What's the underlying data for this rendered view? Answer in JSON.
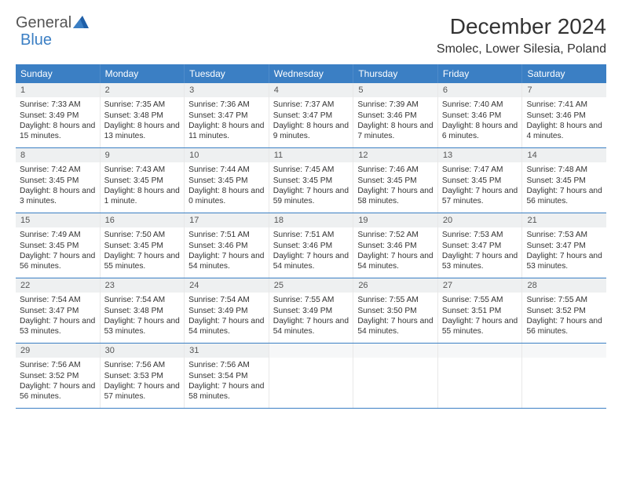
{
  "logo": {
    "part1": "General",
    "part2": "Blue"
  },
  "title": "December 2024",
  "location": "Smolec, Lower Silesia, Poland",
  "colors": {
    "header_bg": "#3b7fc4",
    "header_text": "#ffffff",
    "daynum_bg": "#eef0f1",
    "border": "#3b7fc4",
    "text": "#333333"
  },
  "weekdays": [
    "Sunday",
    "Monday",
    "Tuesday",
    "Wednesday",
    "Thursday",
    "Friday",
    "Saturday"
  ],
  "weeks": [
    [
      {
        "n": "1",
        "sr": "Sunrise: 7:33 AM",
        "ss": "Sunset: 3:49 PM",
        "dl": "Daylight: 8 hours and 15 minutes."
      },
      {
        "n": "2",
        "sr": "Sunrise: 7:35 AM",
        "ss": "Sunset: 3:48 PM",
        "dl": "Daylight: 8 hours and 13 minutes."
      },
      {
        "n": "3",
        "sr": "Sunrise: 7:36 AM",
        "ss": "Sunset: 3:47 PM",
        "dl": "Daylight: 8 hours and 11 minutes."
      },
      {
        "n": "4",
        "sr": "Sunrise: 7:37 AM",
        "ss": "Sunset: 3:47 PM",
        "dl": "Daylight: 8 hours and 9 minutes."
      },
      {
        "n": "5",
        "sr": "Sunrise: 7:39 AM",
        "ss": "Sunset: 3:46 PM",
        "dl": "Daylight: 8 hours and 7 minutes."
      },
      {
        "n": "6",
        "sr": "Sunrise: 7:40 AM",
        "ss": "Sunset: 3:46 PM",
        "dl": "Daylight: 8 hours and 6 minutes."
      },
      {
        "n": "7",
        "sr": "Sunrise: 7:41 AM",
        "ss": "Sunset: 3:46 PM",
        "dl": "Daylight: 8 hours and 4 minutes."
      }
    ],
    [
      {
        "n": "8",
        "sr": "Sunrise: 7:42 AM",
        "ss": "Sunset: 3:45 PM",
        "dl": "Daylight: 8 hours and 3 minutes."
      },
      {
        "n": "9",
        "sr": "Sunrise: 7:43 AM",
        "ss": "Sunset: 3:45 PM",
        "dl": "Daylight: 8 hours and 1 minute."
      },
      {
        "n": "10",
        "sr": "Sunrise: 7:44 AM",
        "ss": "Sunset: 3:45 PM",
        "dl": "Daylight: 8 hours and 0 minutes."
      },
      {
        "n": "11",
        "sr": "Sunrise: 7:45 AM",
        "ss": "Sunset: 3:45 PM",
        "dl": "Daylight: 7 hours and 59 minutes."
      },
      {
        "n": "12",
        "sr": "Sunrise: 7:46 AM",
        "ss": "Sunset: 3:45 PM",
        "dl": "Daylight: 7 hours and 58 minutes."
      },
      {
        "n": "13",
        "sr": "Sunrise: 7:47 AM",
        "ss": "Sunset: 3:45 PM",
        "dl": "Daylight: 7 hours and 57 minutes."
      },
      {
        "n": "14",
        "sr": "Sunrise: 7:48 AM",
        "ss": "Sunset: 3:45 PM",
        "dl": "Daylight: 7 hours and 56 minutes."
      }
    ],
    [
      {
        "n": "15",
        "sr": "Sunrise: 7:49 AM",
        "ss": "Sunset: 3:45 PM",
        "dl": "Daylight: 7 hours and 56 minutes."
      },
      {
        "n": "16",
        "sr": "Sunrise: 7:50 AM",
        "ss": "Sunset: 3:45 PM",
        "dl": "Daylight: 7 hours and 55 minutes."
      },
      {
        "n": "17",
        "sr": "Sunrise: 7:51 AM",
        "ss": "Sunset: 3:46 PM",
        "dl": "Daylight: 7 hours and 54 minutes."
      },
      {
        "n": "18",
        "sr": "Sunrise: 7:51 AM",
        "ss": "Sunset: 3:46 PM",
        "dl": "Daylight: 7 hours and 54 minutes."
      },
      {
        "n": "19",
        "sr": "Sunrise: 7:52 AM",
        "ss": "Sunset: 3:46 PM",
        "dl": "Daylight: 7 hours and 54 minutes."
      },
      {
        "n": "20",
        "sr": "Sunrise: 7:53 AM",
        "ss": "Sunset: 3:47 PM",
        "dl": "Daylight: 7 hours and 53 minutes."
      },
      {
        "n": "21",
        "sr": "Sunrise: 7:53 AM",
        "ss": "Sunset: 3:47 PM",
        "dl": "Daylight: 7 hours and 53 minutes."
      }
    ],
    [
      {
        "n": "22",
        "sr": "Sunrise: 7:54 AM",
        "ss": "Sunset: 3:47 PM",
        "dl": "Daylight: 7 hours and 53 minutes."
      },
      {
        "n": "23",
        "sr": "Sunrise: 7:54 AM",
        "ss": "Sunset: 3:48 PM",
        "dl": "Daylight: 7 hours and 53 minutes."
      },
      {
        "n": "24",
        "sr": "Sunrise: 7:54 AM",
        "ss": "Sunset: 3:49 PM",
        "dl": "Daylight: 7 hours and 54 minutes."
      },
      {
        "n": "25",
        "sr": "Sunrise: 7:55 AM",
        "ss": "Sunset: 3:49 PM",
        "dl": "Daylight: 7 hours and 54 minutes."
      },
      {
        "n": "26",
        "sr": "Sunrise: 7:55 AM",
        "ss": "Sunset: 3:50 PM",
        "dl": "Daylight: 7 hours and 54 minutes."
      },
      {
        "n": "27",
        "sr": "Sunrise: 7:55 AM",
        "ss": "Sunset: 3:51 PM",
        "dl": "Daylight: 7 hours and 55 minutes."
      },
      {
        "n": "28",
        "sr": "Sunrise: 7:55 AM",
        "ss": "Sunset: 3:52 PM",
        "dl": "Daylight: 7 hours and 56 minutes."
      }
    ],
    [
      {
        "n": "29",
        "sr": "Sunrise: 7:56 AM",
        "ss": "Sunset: 3:52 PM",
        "dl": "Daylight: 7 hours and 56 minutes."
      },
      {
        "n": "30",
        "sr": "Sunrise: 7:56 AM",
        "ss": "Sunset: 3:53 PM",
        "dl": "Daylight: 7 hours and 57 minutes."
      },
      {
        "n": "31",
        "sr": "Sunrise: 7:56 AM",
        "ss": "Sunset: 3:54 PM",
        "dl": "Daylight: 7 hours and 58 minutes."
      },
      {
        "n": "",
        "sr": "",
        "ss": "",
        "dl": ""
      },
      {
        "n": "",
        "sr": "",
        "ss": "",
        "dl": ""
      },
      {
        "n": "",
        "sr": "",
        "ss": "",
        "dl": ""
      },
      {
        "n": "",
        "sr": "",
        "ss": "",
        "dl": ""
      }
    ]
  ]
}
